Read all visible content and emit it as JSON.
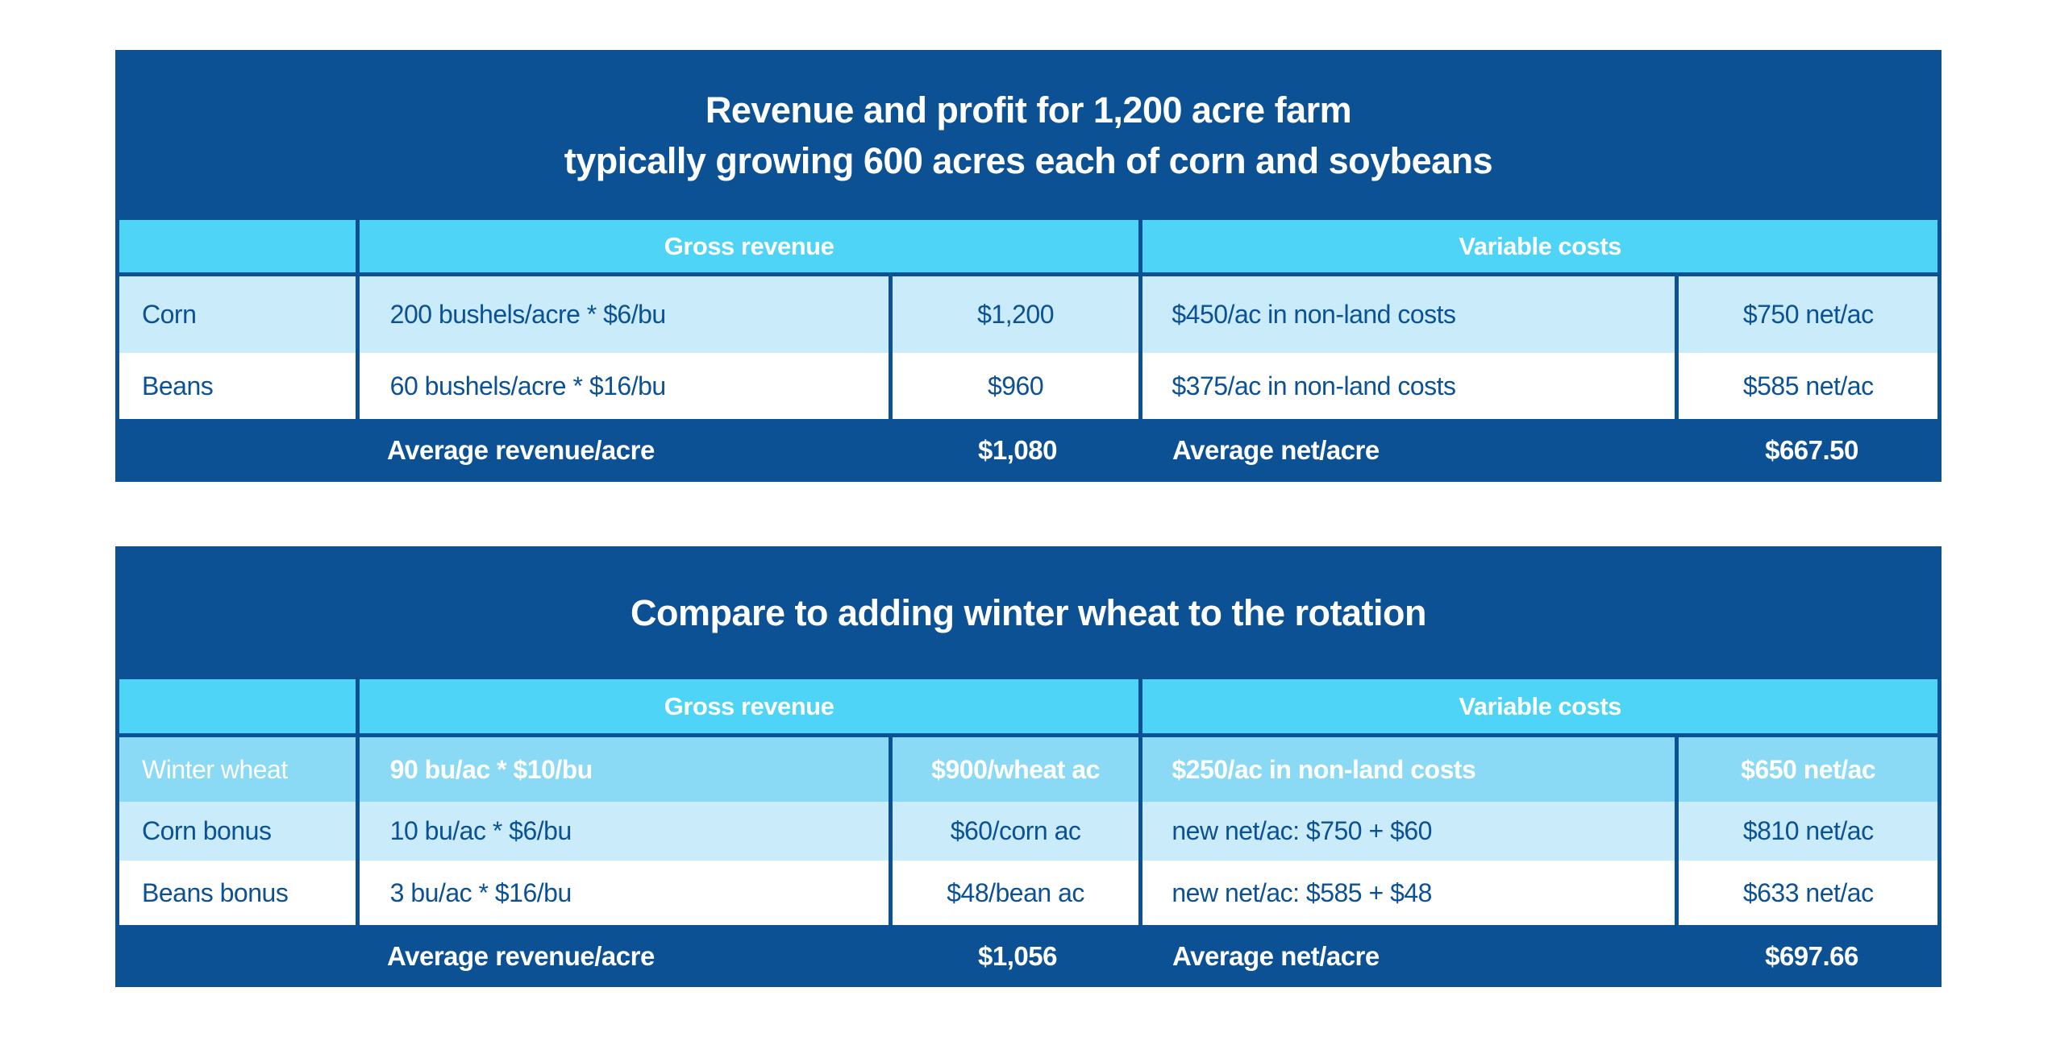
{
  "colors": {
    "dark-blue": "#0C5194",
    "cyan": "#4DD4F7",
    "medium-blue": "#8ADAF5",
    "light-blue": "#C9EBFA",
    "white": "#FFFFFF"
  },
  "chart_data": [
    {
      "type": "table",
      "title": "Revenue and profit for 1,200 acre farm typically growing 600 acres each of corn and soybeans",
      "title_lines": [
        "Revenue and profit for 1,200 acre farm",
        "typically growing 600 acres each of corn and soybeans"
      ],
      "group_headers": {
        "gross": "Gross revenue",
        "variable": "Variable costs"
      },
      "rows": [
        [
          "Corn",
          "200 bushels/acre * $6/bu",
          "$1,200",
          "$450/ac in non-land costs",
          "$750 net/ac"
        ],
        [
          "Beans",
          "60 bushels/acre * $16/bu",
          "$960",
          "$375/ac in non-land costs",
          "$585 net/ac"
        ]
      ],
      "footer": {
        "revenue_label": "Average revenue/acre",
        "revenue_value": "$1,080",
        "net_label": "Average net/acre",
        "net_value": "$667.50"
      }
    },
    {
      "type": "table",
      "title": "Compare to adding winter wheat to the rotation",
      "title_lines": [
        "Compare to adding winter wheat to the rotation"
      ],
      "group_headers": {
        "gross": "Gross revenue",
        "variable": "Variable costs"
      },
      "rows": [
        [
          "Winter wheat",
          "90 bu/ac * $10/bu",
          "$900/wheat ac",
          "$250/ac in non-land costs",
          "$650 net/ac"
        ],
        [
          "Corn bonus",
          "10 bu/ac * $6/bu",
          "$60/corn ac",
          "new net/ac: $750 + $60",
          "$810 net/ac"
        ],
        [
          "Beans bonus",
          "3 bu/ac * $16/bu",
          "$48/bean ac",
          "new net/ac: $585 + $48",
          "$633 net/ac"
        ]
      ],
      "footer": {
        "revenue_label": "Average revenue/acre",
        "revenue_value": "$1,056",
        "net_label": "Average net/acre",
        "net_value": "$697.66"
      }
    }
  ]
}
